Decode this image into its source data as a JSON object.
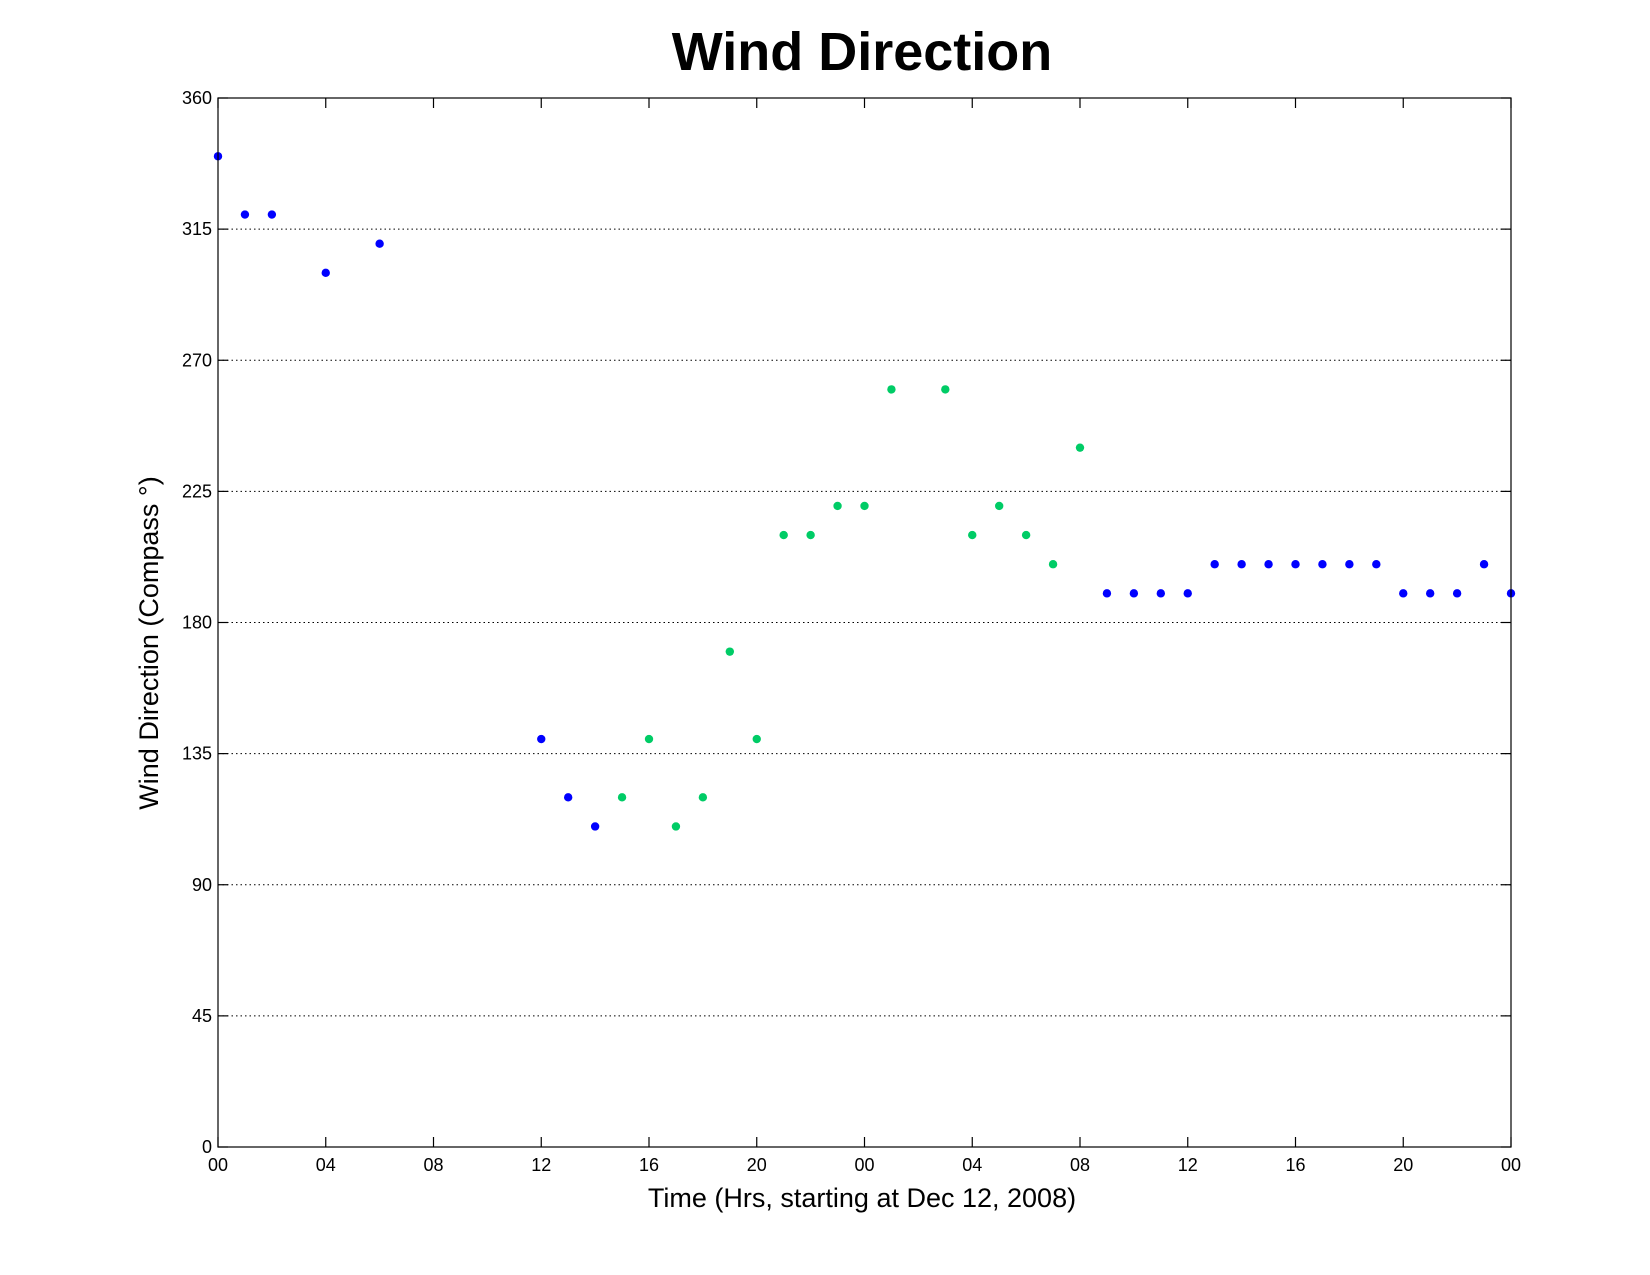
{
  "chart_data": {
    "type": "scatter",
    "title": "Wind Direction",
    "xlabel": "Time (Hrs, starting at Dec 12, 2008)",
    "ylabel": "Wind Direction (Compass  °)",
    "xlim": [
      0,
      48
    ],
    "ylim": [
      0,
      360
    ],
    "grid": "horizontal dotted",
    "x_ticks": [
      {
        "x": 0,
        "label": "00"
      },
      {
        "x": 4,
        "label": "04"
      },
      {
        "x": 8,
        "label": "08"
      },
      {
        "x": 12,
        "label": "12"
      },
      {
        "x": 16,
        "label": "16"
      },
      {
        "x": 20,
        "label": "20"
      },
      {
        "x": 24,
        "label": "00"
      },
      {
        "x": 28,
        "label": "04"
      },
      {
        "x": 32,
        "label": "08"
      },
      {
        "x": 36,
        "label": "12"
      },
      {
        "x": 40,
        "label": "16"
      },
      {
        "x": 44,
        "label": "20"
      },
      {
        "x": 48,
        "label": "00"
      }
    ],
    "y_ticks": [
      0,
      45,
      90,
      135,
      180,
      225,
      270,
      315,
      360
    ],
    "series": [
      {
        "color": "#0000ff",
        "points": [
          [
            0,
            340
          ],
          [
            1,
            320
          ],
          [
            2,
            320
          ],
          [
            4,
            300
          ],
          [
            6,
            310
          ],
          [
            12,
            140
          ],
          [
            13,
            120
          ],
          [
            14,
            110
          ],
          [
            33,
            190
          ],
          [
            34,
            190
          ],
          [
            35,
            190
          ],
          [
            36,
            190
          ],
          [
            37,
            200
          ],
          [
            38,
            200
          ],
          [
            39,
            200
          ],
          [
            40,
            200
          ],
          [
            41,
            200
          ],
          [
            42,
            200
          ],
          [
            43,
            200
          ],
          [
            44,
            190
          ],
          [
            45,
            190
          ],
          [
            46,
            190
          ],
          [
            47,
            200
          ],
          [
            48,
            190
          ]
        ]
      },
      {
        "color": "#00cc66",
        "points": [
          [
            15,
            120
          ],
          [
            16,
            140
          ],
          [
            17,
            110
          ],
          [
            18,
            120
          ],
          [
            19,
            170
          ],
          [
            20,
            140
          ],
          [
            21,
            210
          ],
          [
            22,
            210
          ],
          [
            23,
            220
          ],
          [
            24,
            220
          ],
          [
            25,
            260
          ],
          [
            27,
            260
          ],
          [
            28,
            210
          ],
          [
            29,
            220
          ],
          [
            30,
            210
          ],
          [
            31,
            200
          ],
          [
            32,
            240
          ]
        ]
      }
    ]
  }
}
